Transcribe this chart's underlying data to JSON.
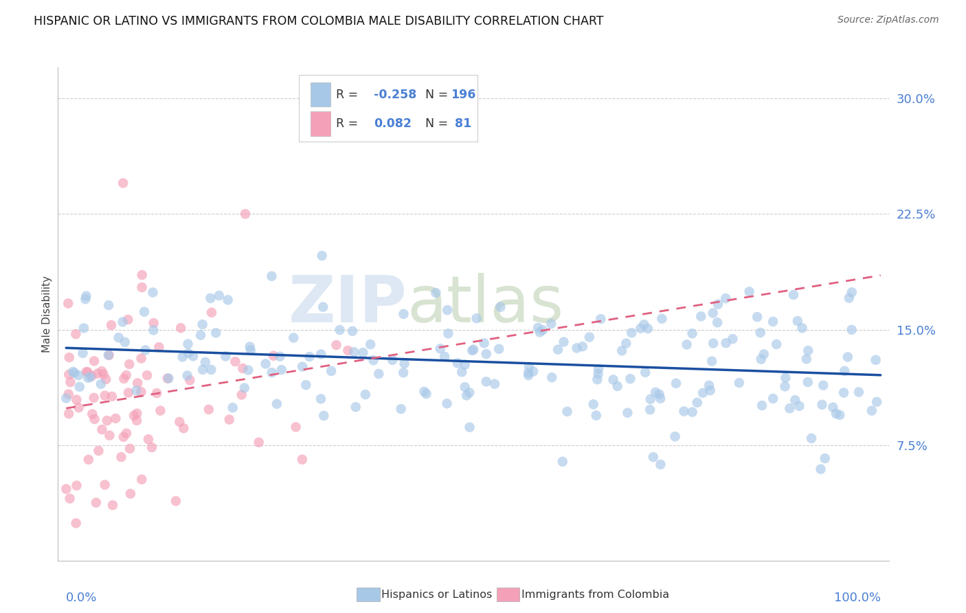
{
  "title": "HISPANIC OR LATINO VS IMMIGRANTS FROM COLOMBIA MALE DISABILITY CORRELATION CHART",
  "source": "Source: ZipAtlas.com",
  "ylabel": "Male Disability",
  "series1_label": "Hispanics or Latinos",
  "series1_R": -0.258,
  "series1_N": 196,
  "series1_color": "#a8c8e8",
  "series1_line_color": "#1a4fa0",
  "series2_label": "Immigrants from Colombia",
  "series2_R": 0.082,
  "series2_N": 81,
  "series2_color": "#f4a0b8",
  "series2_line_color": "#e06080",
  "background_color": "#ffffff",
  "title_fontsize": 12.5,
  "axis_label_color": "#4a7fd4",
  "legend_color": "#4a7fd4",
  "watermark_color": "#d0dff0",
  "watermark_color2": "#c8d8c0",
  "ylim_min": 0,
  "ylim_max": 32,
  "xlim_min": -1,
  "xlim_max": 101
}
